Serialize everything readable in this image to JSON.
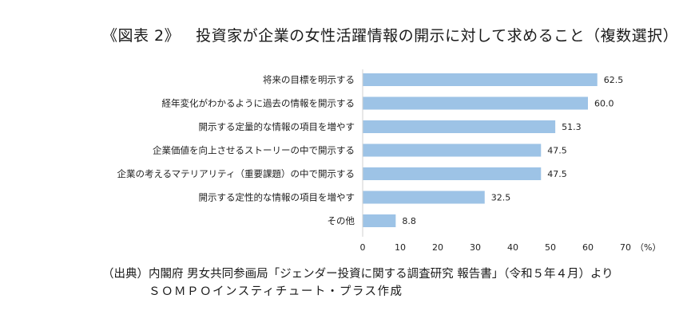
{
  "header": {
    "figure_label": "《図表 2》",
    "title": "投資家が企業の女性活躍情報の開示に対して求めること（複数選択）"
  },
  "chart_data": {
    "type": "bar",
    "orientation": "horizontal",
    "categories": [
      "将来の目標を明示する",
      "経年変化がわかるように過去の情報を開示する",
      "開示する定量的な情報の項目を増やす",
      "企業価値を向上させるストーリーの中で開示する",
      "企業の考えるマテリアリティ（重要課題）の中で開示する",
      "開示する定性的な情報の項目を増やす",
      "その他"
    ],
    "values": [
      62.5,
      60.0,
      51.3,
      47.5,
      47.5,
      32.5,
      8.8
    ],
    "value_labels": [
      "62.5",
      "60.0",
      "51.3",
      "47.5",
      "47.5",
      "32.5",
      "8.8"
    ],
    "xlim": [
      0,
      70
    ],
    "xticks": [
      "0",
      "10",
      "20",
      "30",
      "40",
      "50",
      "60",
      "70"
    ],
    "xunit": "（%）",
    "bar_color": "#9dc3e6",
    "grid": false,
    "legend": "none"
  },
  "source": {
    "line1": "（出典）内閣府 男女共同参画局「ジェンダー投資に関する調査研究 報告書」（令和５年４月）より",
    "line2": "ＳＯＭＰＯインスティチュート・プラス作成"
  }
}
